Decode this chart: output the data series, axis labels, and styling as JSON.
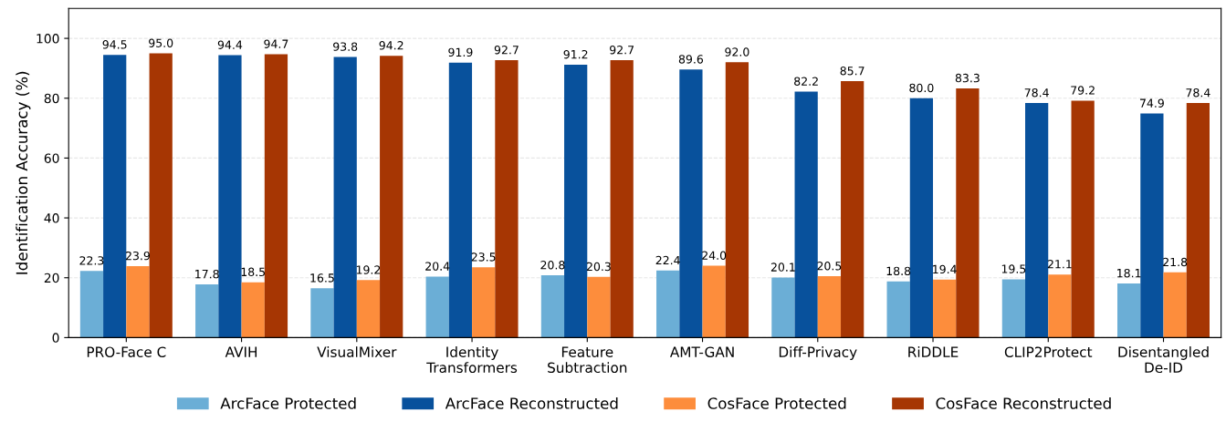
{
  "chart_data": {
    "type": "bar",
    "ylabel": "Identification Accuracy (%)",
    "categories": [
      "PRO-Face C",
      "AVIH",
      "VisualMixer",
      "Identity\nTransformers",
      "Feature\nSubtraction",
      "AMT-GAN",
      "Diff-Privacy",
      "RiDDLE",
      "CLIP2Protect",
      "Disentangled\nDe-ID"
    ],
    "series": [
      {
        "name": "ArcFace Protected",
        "color": "#6baed6",
        "values": [
          22.3,
          17.8,
          16.5,
          20.4,
          20.8,
          22.4,
          20.1,
          18.8,
          19.5,
          18.1
        ],
        "value_labels": [
          "22.3",
          "17.8",
          "16.5",
          "20.4",
          "20.8",
          "22.4",
          "20.1",
          "18.8",
          "19.5",
          "18.1"
        ]
      },
      {
        "name": "ArcFace Reconstructed",
        "color": "#08519c",
        "values": [
          94.5,
          94.4,
          93.8,
          91.9,
          91.2,
          89.6,
          82.2,
          80.0,
          78.4,
          74.9
        ],
        "value_labels": [
          "94.5",
          "94.4",
          "93.8",
          "91.9",
          "91.2",
          "89.6",
          "82.2",
          "80.0",
          "78.4",
          "74.9"
        ]
      },
      {
        "name": "CosFace Protected",
        "color": "#fd8d3c",
        "values": [
          23.9,
          18.5,
          19.2,
          23.5,
          20.3,
          24.0,
          20.5,
          19.4,
          21.1,
          21.8
        ],
        "value_labels": [
          "23.9",
          "18.5",
          "19.2",
          "23.5",
          "20.3",
          "24.0",
          "20.5",
          "19.4",
          "21.1",
          "21.8"
        ]
      },
      {
        "name": "CosFace Reconstructed",
        "color": "#a63603",
        "values": [
          95.0,
          94.7,
          94.2,
          92.7,
          92.7,
          92.0,
          85.7,
          83.3,
          79.2,
          78.4
        ],
        "value_labels": [
          "95.0",
          "94.7",
          "94.2",
          "92.7",
          "92.7",
          "92.0",
          "85.7",
          "83.3",
          "79.2",
          "78.4"
        ]
      }
    ],
    "ylim": [
      0,
      110
    ],
    "yticks": [
      0,
      20,
      40,
      60,
      80,
      100
    ],
    "grid": "y",
    "legend": "bottom"
  }
}
